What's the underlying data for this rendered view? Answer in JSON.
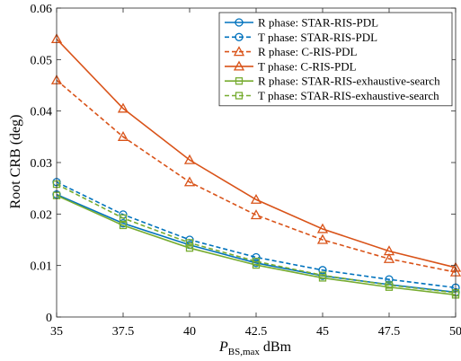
{
  "chart_data": {
    "type": "line",
    "x": [
      35,
      37.5,
      40,
      42.5,
      45,
      47.5,
      50
    ],
    "xlim": [
      35,
      50
    ],
    "ylim": [
      0,
      0.06
    ],
    "xticks": [
      "35",
      "37.5",
      "40",
      "42.5",
      "45",
      "47.5",
      "50"
    ],
    "yticks": [
      "0",
      "0.01",
      "0.02",
      "0.03",
      "0.04",
      "0.05",
      "0.06"
    ],
    "xlabel_main": "P",
    "xlabel_sub": "BS,max",
    "xlabel_unit": " dBm",
    "ylabel": "Root CRB (deg)",
    "grid": false,
    "legend_position": "top-right",
    "series": [
      {
        "name": "R phase: STAR-RIS-PDL",
        "color": "#0072BD",
        "dash": false,
        "marker": "circle",
        "values": [
          0.0238,
          0.0182,
          0.014,
          0.0105,
          0.008,
          0.0063,
          0.0048
        ]
      },
      {
        "name": "T phase: STAR-RIS-PDL",
        "color": "#0072BD",
        "dash": true,
        "marker": "circle",
        "values": [
          0.0262,
          0.0199,
          0.015,
          0.0116,
          0.0091,
          0.0073,
          0.0057
        ]
      },
      {
        "name": "R phase: C-RIS-PDL",
        "color": "#D95319",
        "dash": true,
        "marker": "triangle",
        "values": [
          0.046,
          0.035,
          0.0262,
          0.0198,
          0.015,
          0.0113,
          0.0087
        ]
      },
      {
        "name": "T phase: C-RIS-PDL",
        "color": "#D95319",
        "dash": false,
        "marker": "triangle",
        "values": [
          0.054,
          0.0405,
          0.0305,
          0.0228,
          0.0171,
          0.0128,
          0.0096
        ]
      },
      {
        "name": "R phase: STAR-RIS-exhaustive-search",
        "color": "#77AC30",
        "dash": false,
        "marker": "square",
        "values": [
          0.0236,
          0.0178,
          0.0134,
          0.0101,
          0.0076,
          0.0058,
          0.0043
        ]
      },
      {
        "name": "T phase: STAR-RIS-exhaustive-search",
        "color": "#77AC30",
        "dash": true,
        "marker": "square",
        "values": [
          0.0258,
          0.0192,
          0.0144,
          0.0108,
          0.0081,
          0.0062,
          0.0047
        ]
      }
    ]
  }
}
